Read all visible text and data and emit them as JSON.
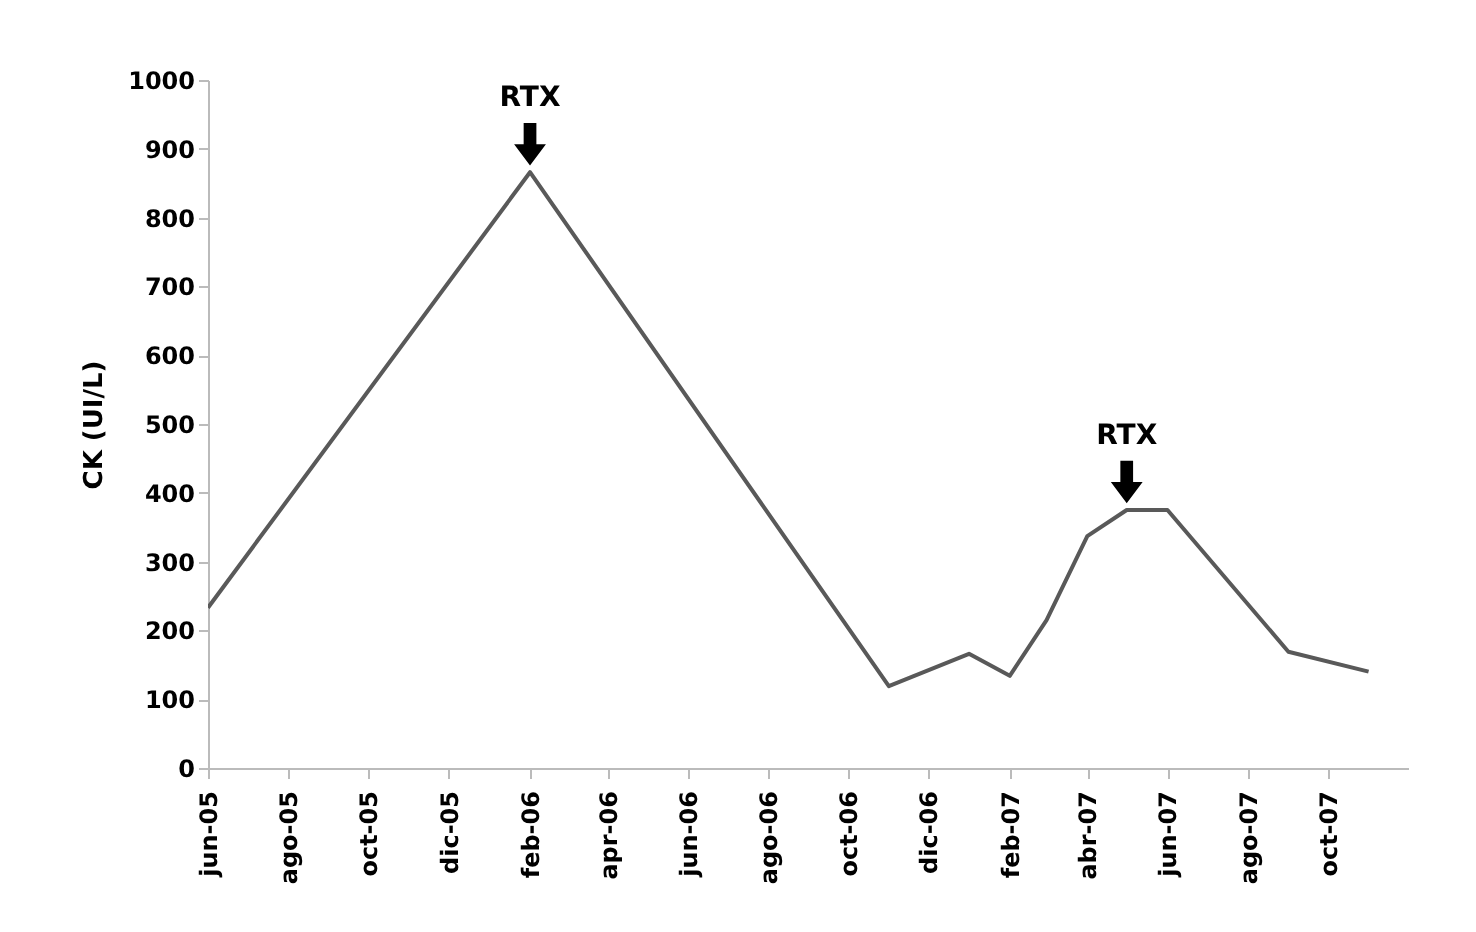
{
  "chart_data": {
    "type": "line",
    "ylabel": "CK (UI/L)",
    "x": [
      "2005-06",
      "2006-02",
      "2006-11",
      "2007-01",
      "2007-02",
      "2007-03",
      "2007-04",
      "2007-05",
      "2007-06",
      "2007-09",
      "2007-11"
    ],
    "series": [
      {
        "color": "#595959",
        "values": [
          233,
          866,
          119,
          166,
          134,
          215,
          337,
          375,
          375,
          169,
          140
        ]
      }
    ],
    "xlim": [
      "2005-06",
      "2007-12"
    ],
    "xticks": [
      {
        "value": "2005-06",
        "label": "jun-05"
      },
      {
        "value": "2005-08",
        "label": "ago-05"
      },
      {
        "value": "2005-10",
        "label": "oct-05"
      },
      {
        "value": "2005-12",
        "label": "dic-05"
      },
      {
        "value": "2006-02",
        "label": "feb-06"
      },
      {
        "value": "2006-04",
        "label": "apr-06"
      },
      {
        "value": "2006-06",
        "label": "jun-06"
      },
      {
        "value": "2006-08",
        "label": "ago-06"
      },
      {
        "value": "2006-10",
        "label": "oct-06"
      },
      {
        "value": "2006-12",
        "label": "dic-06"
      },
      {
        "value": "2007-02",
        "label": "feb-07"
      },
      {
        "value": "2007-04",
        "label": "abr-07"
      },
      {
        "value": "2007-06",
        "label": "jun-07"
      },
      {
        "value": "2007-08",
        "label": "ago-07"
      },
      {
        "value": "2007-10",
        "label": "oct-07"
      }
    ],
    "ylim": [
      0,
      1000
    ],
    "yticks": [
      0,
      100,
      200,
      300,
      400,
      500,
      600,
      700,
      800,
      900,
      1000
    ],
    "grid": false,
    "marker": "none",
    "line_style": "solid",
    "annotations": [
      {
        "text": "RTX",
        "x": "2006-02",
        "y": 866
      },
      {
        "text": "RTX",
        "x": "2007-05",
        "y": 375
      }
    ]
  }
}
